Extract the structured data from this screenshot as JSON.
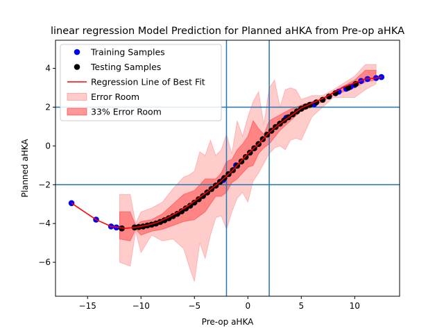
{
  "chart_data": {
    "type": "scatter",
    "title": "linear regression Model Prediction for Planned aHKA from Pre-op aHKA",
    "xlabel": "Pre-op aHKA",
    "ylabel": "Planned aHKA",
    "xlim": [
      -18,
      14.2
    ],
    "ylim": [
      -7.75,
      5.45
    ],
    "xticks": [
      -15,
      -10,
      -5,
      0,
      5,
      10
    ],
    "yticks": [
      -6,
      -4,
      -2,
      0,
      2,
      4
    ],
    "xtick_labels": [
      "−15",
      "−10",
      "−5",
      "0",
      "5",
      "10"
    ],
    "ytick_labels": [
      "−6",
      "−4",
      "−2",
      "0",
      "2",
      "4"
    ],
    "grid": false,
    "legend_position": "top-left",
    "colors": {
      "training": "#0000ff",
      "testing": "#000000",
      "regression": "#ff0000",
      "error_room": "#ff0000",
      "reference_lines": "#1f77b4"
    },
    "reference_lines": {
      "vertical": [
        -2,
        2
      ],
      "horizontal": [
        -2,
        2
      ]
    },
    "legend": [
      {
        "label": "Training Samples",
        "kind": "dot-training"
      },
      {
        "label": "Testing Samples",
        "kind": "dot-testing"
      },
      {
        "label": "Regression Line of Best Fit",
        "kind": "line"
      },
      {
        "label": "Error Room",
        "kind": "patch-light"
      },
      {
        "label": "33% Error Room",
        "kind": "patch-dark"
      }
    ],
    "regression_line": {
      "x": [
        -16.5,
        -14.2,
        -12.8,
        -11.5,
        -10.5,
        -9.5,
        -8.5,
        -7.5,
        -6.5,
        -5.5,
        -4.5,
        -3.5,
        -2.5,
        -2,
        -1.5,
        -1,
        -0.5,
        0,
        0.5,
        1,
        1.5,
        2,
        3,
        4,
        5,
        6,
        7,
        8,
        9,
        10,
        11,
        12,
        12.5
      ],
      "y": [
        -2.95,
        -3.8,
        -4.15,
        -4.25,
        -4.2,
        -4.1,
        -3.95,
        -3.7,
        -3.4,
        -3.05,
        -2.65,
        -2.25,
        -1.8,
        -1.55,
        -1.3,
        -1.0,
        -0.7,
        -0.4,
        -0.15,
        0.1,
        0.4,
        0.7,
        1.15,
        1.55,
        1.95,
        2.2,
        2.45,
        2.75,
        3.05,
        3.25,
        3.45,
        3.5,
        3.55
      ]
    },
    "error_room": {
      "x": [
        -12,
        -11,
        -10.5,
        -10,
        -9,
        -8,
        -7,
        -6,
        -5.5,
        -5,
        -4.5,
        -4,
        -3.5,
        -3,
        -2.5,
        -2,
        -1.5,
        -1,
        -0.5,
        0,
        0.5,
        1,
        1.5,
        2,
        2.5,
        3,
        3.5,
        4,
        4.5,
        5,
        6,
        7,
        8,
        10,
        11,
        12
      ],
      "upper": [
        -2.5,
        -2.5,
        -4.0,
        -3.4,
        -3.2,
        -2.9,
        -2.2,
        -1.6,
        -1.5,
        -1.3,
        -0.3,
        -0.5,
        0.3,
        -0.5,
        -0.2,
        0.6,
        -0.4,
        1.3,
        0.5,
        1.5,
        2.3,
        2.8,
        1.1,
        3.0,
        3.4,
        2.0,
        2.9,
        3.0,
        2.9,
        2.4,
        2.6,
        2.6,
        2.9,
        3.6,
        4.2,
        4.2
      ],
      "lower": [
        -6.0,
        -6.2,
        -4.4,
        -5.5,
        -4.6,
        -4.9,
        -4.8,
        -5.3,
        -6.2,
        -7.0,
        -5.0,
        -5.8,
        -4.6,
        -3.7,
        -3.6,
        -4.3,
        -3.4,
        -2.7,
        -2.4,
        -2.9,
        -1.8,
        -1.4,
        -0.9,
        -0.4,
        -0.1,
        0.0,
        -0.2,
        0.3,
        0.4,
        0.3,
        1.5,
        2.0,
        2.5,
        2.5,
        2.9,
        3.2
      ]
    },
    "error_room_33": {
      "x": [
        -12,
        -11,
        -10.5,
        -10,
        -9,
        -8,
        -7,
        -6,
        -5,
        -4,
        -3,
        -2.5,
        -2,
        -1.5,
        -1,
        -0.5,
        0,
        0.5,
        1,
        1.5,
        2,
        3,
        4,
        5,
        6,
        7,
        8,
        10,
        11,
        12
      ],
      "upper": [
        -3.4,
        -3.4,
        -4.1,
        -3.9,
        -3.8,
        -3.5,
        -3.0,
        -2.5,
        -2.3,
        -1.7,
        -1.7,
        -1.4,
        -0.8,
        -0.7,
        -0.2,
        0.1,
        0.5,
        1.3,
        0.9,
        0.6,
        1.3,
        1.6,
        1.9,
        2.1,
        2.3,
        2.4,
        2.8,
        3.4,
        3.9,
        3.9
      ],
      "lower": [
        -4.8,
        -4.9,
        -4.3,
        -4.6,
        -4.4,
        -4.3,
        -4.1,
        -3.9,
        -3.8,
        -3.4,
        -2.6,
        -2.6,
        -2.4,
        -1.9,
        -1.7,
        -1.4,
        -1.1,
        -1.0,
        -0.4,
        -0.1,
        0.1,
        0.8,
        1.3,
        1.8,
        2.0,
        2.3,
        2.6,
        3.0,
        3.3,
        3.4
      ]
    },
    "training_samples": {
      "x": [
        -16.5,
        -14.2,
        -12.8,
        -12.3,
        -11.8,
        8.5,
        9.2,
        9.6,
        10.0,
        10.6,
        11.2,
        12.0,
        12.5,
        -2.3,
        -1.1,
        3.6,
        6.2
      ],
      "y": [
        -2.95,
        -3.8,
        -4.15,
        -4.2,
        -4.25,
        2.8,
        2.95,
        3.05,
        3.15,
        3.35,
        3.45,
        3.5,
        3.55,
        -1.75,
        -1.0,
        1.45,
        2.15
      ]
    },
    "testing_samples": {
      "x": [
        -11.8,
        -10.6,
        -10.2,
        -9.8,
        -9.4,
        -9.0,
        -8.6,
        -8.2,
        -7.8,
        -7.4,
        -7.0,
        -6.6,
        -6.2,
        -5.8,
        -5.4,
        -5.0,
        -4.6,
        -4.2,
        -3.8,
        -3.4,
        -3.0,
        -2.6,
        -2.2,
        -1.8,
        -1.4,
        -1.0,
        -0.6,
        -0.2,
        0.2,
        0.6,
        1.0,
        1.4,
        1.8,
        2.2,
        2.6,
        3.0,
        3.4,
        3.8,
        4.2,
        4.6,
        5.0,
        5.4,
        5.8,
        6.4,
        7.0,
        7.6,
        8.2,
        9.4,
        10.1
      ],
      "y": [
        -4.25,
        -4.2,
        -4.18,
        -4.15,
        -4.1,
        -4.06,
        -4.0,
        -3.92,
        -3.83,
        -3.73,
        -3.62,
        -3.5,
        -3.37,
        -3.22,
        -3.08,
        -2.92,
        -2.75,
        -2.58,
        -2.4,
        -2.22,
        -2.04,
        -1.85,
        -1.65,
        -1.45,
        -1.25,
        -1.02,
        -0.8,
        -0.57,
        -0.34,
        -0.12,
        0.1,
        0.35,
        0.58,
        0.78,
        0.98,
        1.15,
        1.32,
        1.48,
        1.63,
        1.78,
        1.92,
        2.03,
        2.12,
        2.25,
        2.38,
        2.55,
        2.72,
        3.0,
        3.2
      ]
    }
  }
}
